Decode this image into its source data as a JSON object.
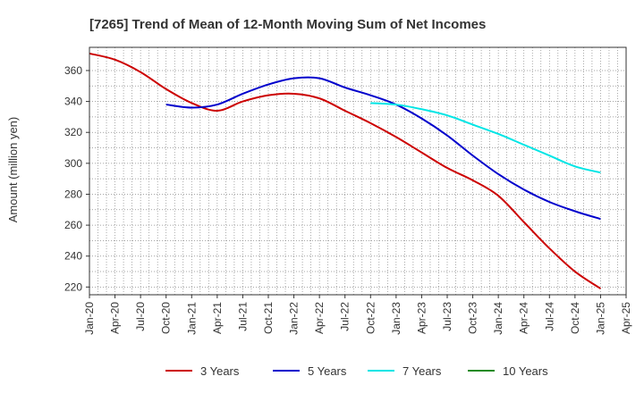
{
  "chart_data": {
    "type": "line",
    "title": "[7265]  Trend of Mean of 12-Month Moving Sum of Net Incomes",
    "xlabel": "",
    "ylabel": "Amount (million yen)",
    "ylim": [
      215,
      375
    ],
    "yticks": [
      220,
      240,
      260,
      280,
      300,
      320,
      340,
      360
    ],
    "xticks": [
      "Jan-20",
      "Apr-20",
      "Jul-20",
      "Oct-20",
      "Jan-21",
      "Apr-21",
      "Jul-21",
      "Oct-21",
      "Jan-22",
      "Apr-22",
      "Jul-22",
      "Oct-22",
      "Jan-23",
      "Apr-23",
      "Jul-23",
      "Oct-23",
      "Jan-24",
      "Apr-24",
      "Jul-24",
      "Oct-24",
      "Jan-25",
      "Apr-25"
    ],
    "grid": true,
    "legend_position": "bottom",
    "colors": {
      "3 Years": "#cc0000",
      "5 Years": "#0000cc",
      "7 Years": "#00e5e5",
      "10 Years": "#228b22"
    },
    "series": [
      {
        "name": "3 Years",
        "x": [
          "Jan-20",
          "Apr-20",
          "Jul-20",
          "Oct-20",
          "Jan-21",
          "Apr-21",
          "Jul-21",
          "Oct-21",
          "Jan-22",
          "Apr-22",
          "Jul-22",
          "Oct-22",
          "Jan-23",
          "Apr-23",
          "Jul-23",
          "Oct-23",
          "Jan-24",
          "Apr-24",
          "Jul-24",
          "Oct-24",
          "Jan-25"
        ],
        "values": [
          371,
          367,
          359,
          348,
          339,
          334,
          340,
          344,
          345,
          342,
          334,
          326,
          317,
          307,
          297,
          289,
          279,
          262,
          245,
          230,
          219
        ]
      },
      {
        "name": "5 Years",
        "x": [
          "Oct-20",
          "Jan-21",
          "Apr-21",
          "Jul-21",
          "Oct-21",
          "Jan-22",
          "Apr-22",
          "Jul-22",
          "Oct-22",
          "Jan-23",
          "Apr-23",
          "Jul-23",
          "Oct-23",
          "Jan-24",
          "Apr-24",
          "Jul-24",
          "Oct-24",
          "Jan-25"
        ],
        "values": [
          338,
          336,
          338,
          345,
          351,
          355,
          355,
          349,
          344,
          338,
          329,
          318,
          305,
          293,
          283,
          275,
          269,
          264
        ]
      },
      {
        "name": "7 Years",
        "x": [
          "Oct-22",
          "Jan-23",
          "Apr-23",
          "Jul-23",
          "Oct-23",
          "Jan-24",
          "Apr-24",
          "Jul-24",
          "Oct-24",
          "Jan-25"
        ],
        "values": [
          339,
          338,
          335,
          331,
          325,
          319,
          312,
          305,
          298,
          294
        ]
      },
      {
        "name": "10 Years",
        "x": [],
        "values": []
      }
    ]
  }
}
